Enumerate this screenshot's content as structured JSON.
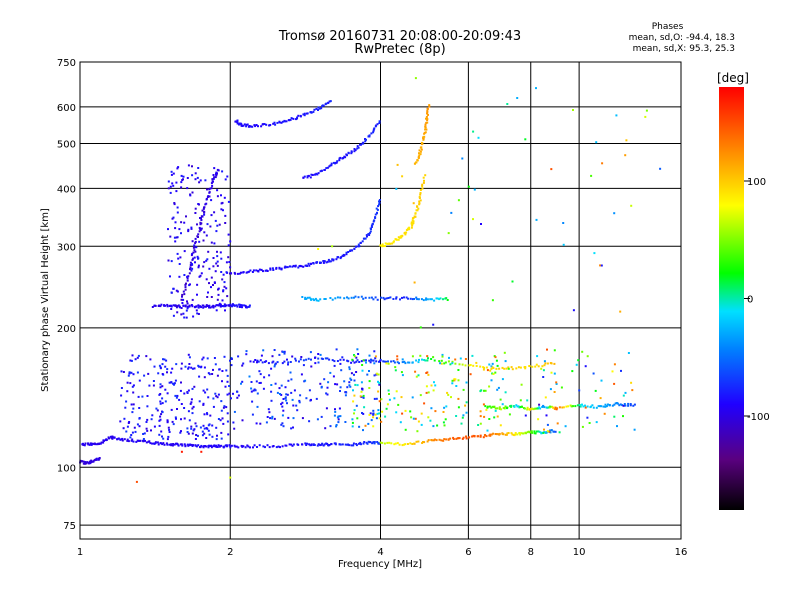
{
  "title_line1": "Tromsø 20160731 20:08:00-20:09:43",
  "title_line2": "RwPretec (8p)",
  "stats": {
    "header": "Phases",
    "line1": "mean, sd,O: -94.4, 18.3",
    "line2": "mean, sd,X:  95.3, 25.3"
  },
  "colorbar": {
    "label": "[deg]",
    "ticks": [
      "100",
      "0",
      "-100"
    ],
    "tick_values": [
      100,
      0,
      -100
    ],
    "range": [
      -180,
      180
    ]
  },
  "chart_data": {
    "type": "scatter",
    "xlabel": "Frequency [MHz]",
    "ylabel": "Stationary phase Virtual Height [km]",
    "xscale": "log",
    "yscale": "log",
    "xlim": [
      1,
      16
    ],
    "ylim": [
      70,
      750
    ],
    "xticks": [
      1,
      2,
      4,
      6,
      8,
      10,
      16
    ],
    "yticks": [
      75,
      100,
      200,
      300,
      400,
      500,
      600,
      750
    ],
    "grid": true,
    "color_by": "phase_deg",
    "traces": [
      {
        "x": [
          1.0,
          1.05,
          1.1,
          1.15,
          1.2,
          1.3,
          1.4,
          1.5,
          1.6,
          1.7,
          1.8,
          1.9,
          2.0,
          2.2,
          2.5,
          2.8,
          3.0,
          3.2,
          3.5,
          3.8,
          4.0
        ],
        "y": [
          112,
          112,
          113,
          116,
          115,
          114,
          113,
          112,
          112,
          111,
          111,
          111,
          111,
          111,
          111,
          112,
          112,
          112,
          112,
          113,
          113
        ],
        "phase": [
          -105,
          -105,
          -104,
          -104,
          -103,
          -103,
          -102,
          -102,
          -101,
          -101,
          -100,
          -100,
          -100,
          -99,
          -98,
          -96,
          -95,
          -93,
          -90,
          -85,
          -80
        ]
      },
      {
        "x": [
          1.0,
          1.03,
          1.06,
          1.1
        ],
        "y": [
          103,
          102,
          103,
          105
        ],
        "phase": [
          -110,
          -110,
          -109,
          -108
        ]
      },
      {
        "x": [
          1.4,
          1.5,
          1.6,
          1.7,
          1.8,
          1.9,
          2.0,
          2.1,
          2.2
        ],
        "y": [
          223,
          224,
          222,
          223,
          222,
          223,
          224,
          223,
          222
        ],
        "phase": [
          -105,
          -104,
          -104,
          -103,
          -103,
          -102,
          -100,
          -98,
          -95
        ]
      },
      {
        "x": [
          1.6,
          1.65,
          1.7,
          1.75,
          1.8,
          1.85,
          1.9
        ],
        "y": [
          230,
          260,
          300,
          340,
          380,
          420,
          440
        ],
        "phase": [
          -115,
          -113,
          -112,
          -110,
          -108,
          -107,
          -106
        ]
      },
      {
        "x": [
          2.0,
          2.2,
          2.4,
          2.6,
          2.8,
          3.0,
          3.2,
          3.4,
          3.6,
          3.8,
          3.9,
          4.0
        ],
        "y": [
          262,
          265,
          267,
          270,
          272,
          276,
          280,
          288,
          300,
          320,
          345,
          380
        ],
        "phase": [
          -100,
          -99,
          -98,
          -97,
          -96,
          -95,
          -94,
          -92,
          -90,
          -88,
          -86,
          -84
        ]
      },
      {
        "x": [
          2.8,
          3.0,
          3.2,
          3.4,
          3.6,
          3.8,
          4.0
        ],
        "y": [
          420,
          430,
          450,
          470,
          490,
          520,
          560
        ],
        "phase": [
          -98,
          -96,
          -95,
          -93,
          -92,
          -90,
          -88
        ]
      },
      {
        "x": [
          2.05,
          2.1,
          2.2,
          2.4,
          2.6,
          2.8,
          3.0,
          3.2
        ],
        "y": [
          560,
          550,
          545,
          550,
          560,
          575,
          595,
          620
        ],
        "phase": [
          -100,
          -99,
          -98,
          -97,
          -96,
          -94,
          -92,
          -90
        ]
      },
      {
        "x": [
          4.0,
          4.2,
          4.4,
          4.6,
          4.7,
          4.8,
          4.9
        ],
        "y": [
          300,
          305,
          315,
          330,
          350,
          380,
          430
        ],
        "phase": [
          85,
          88,
          90,
          92,
          95,
          98,
          100
        ]
      },
      {
        "x": [
          4.7,
          4.8,
          4.9,
          4.95,
          5.0
        ],
        "y": [
          450,
          480,
          520,
          560,
          610
        ],
        "phase": [
          110,
          112,
          115,
          118,
          120
        ]
      },
      {
        "x": [
          4.0,
          4.5,
          5.0,
          5.5,
          6.0,
          6.5,
          7.0,
          7.5,
          8.0,
          8.5,
          9.0
        ],
        "y": [
          113,
          112,
          114,
          115,
          116,
          117,
          118,
          118,
          119,
          119,
          120
        ],
        "phase": [
          60,
          90,
          120,
          140,
          150,
          140,
          120,
          80,
          40,
          -20,
          -80
        ]
      },
      {
        "x": [
          2.8,
          3.0,
          3.5,
          4.0,
          4.5,
          5.0,
          5.5
        ],
        "y": [
          232,
          230,
          233,
          231,
          232,
          230,
          231
        ],
        "phase": [
          -40,
          -30,
          -60,
          -80,
          -90,
          -40,
          20
        ]
      },
      {
        "x": [
          2.2,
          2.5,
          3.0,
          3.5,
          4.0,
          4.5,
          5.0,
          6.0,
          7.0,
          8.0,
          9.0
        ],
        "y": [
          170,
          168,
          172,
          169,
          170,
          168,
          171,
          166,
          163,
          165,
          168
        ],
        "phase": [
          -100,
          -90,
          -80,
          -95,
          -85,
          -60,
          10,
          80,
          100,
          90,
          110
        ]
      },
      {
        "x": [
          6.5,
          7.0,
          7.5,
          8.0,
          8.5,
          9.0,
          10.0,
          11.0,
          12.0,
          13.0
        ],
        "y": [
          135,
          134,
          136,
          133,
          135,
          134,
          136,
          135,
          137,
          136
        ],
        "phase": [
          20,
          60,
          -20,
          100,
          -60,
          150,
          0,
          -40,
          -60,
          -80
        ]
      }
    ],
    "scatter_clouds": [
      {
        "x_range": [
          1.2,
          2.0
        ],
        "y_range": [
          115,
          175
        ],
        "phase": [
          -110,
          -80
        ],
        "count": 260
      },
      {
        "x_range": [
          2.0,
          4.0
        ],
        "y_range": [
          120,
          180
        ],
        "phase": [
          -110,
          -60
        ],
        "count": 220
      },
      {
        "x_range": [
          3.5,
          7.0
        ],
        "y_range": [
          118,
          175
        ],
        "phase": [
          -50,
          150
        ],
        "count": 180
      },
      {
        "x_range": [
          7.0,
          13.0
        ],
        "y_range": [
          118,
          180
        ],
        "phase": [
          -120,
          150
        ],
        "count": 70
      },
      {
        "x_range": [
          1.5,
          2.0
        ],
        "y_range": [
          210,
          450
        ],
        "phase": [
          -115,
          -90
        ],
        "count": 220
      },
      {
        "x_range": [
          4.0,
          15.0
        ],
        "y_range": [
          200,
          700
        ],
        "phase": [
          -100,
          150
        ],
        "count": 45
      }
    ],
    "isolated_points": [
      {
        "x": 1.3,
        "y": 93,
        "phase": 150
      },
      {
        "x": 2.0,
        "y": 95,
        "phase": 70
      },
      {
        "x": 3.2,
        "y": 300,
        "phase": 60
      },
      {
        "x": 3.0,
        "y": 296,
        "phase": 80
      },
      {
        "x": 1.6,
        "y": 108,
        "phase": 170
      },
      {
        "x": 1.75,
        "y": 108,
        "phase": 170
      }
    ]
  }
}
